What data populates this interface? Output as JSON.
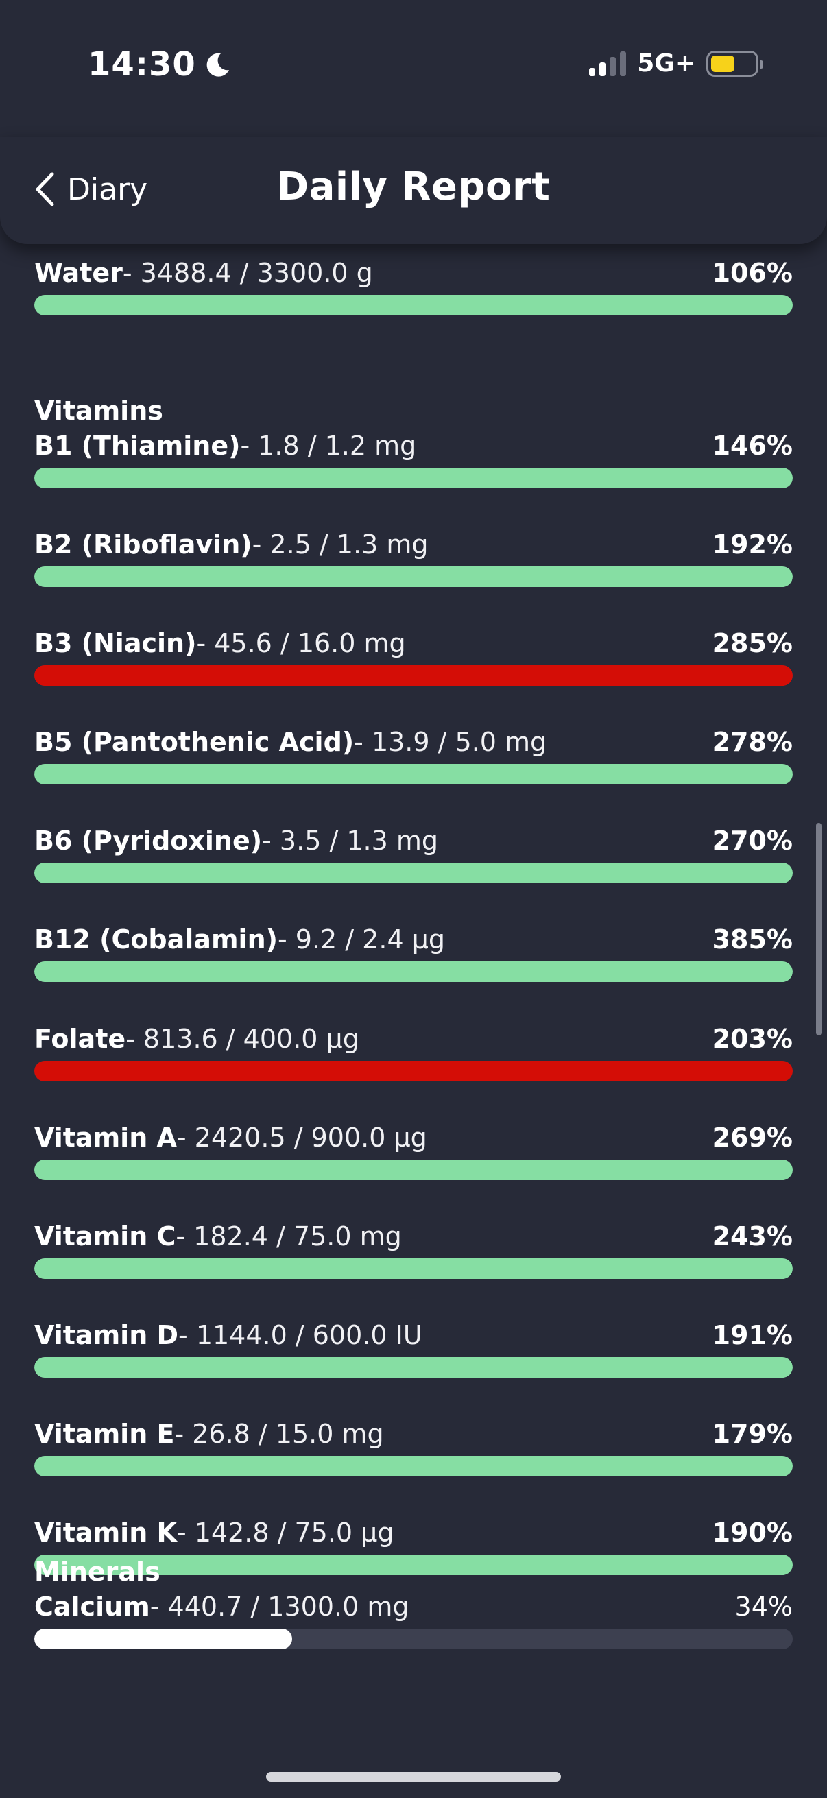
{
  "status_bar": {
    "time": "14:30",
    "network": "5G+",
    "battery_color": "#f7d21a",
    "icons": [
      "moon-icon",
      "signal-icon",
      "battery-icon"
    ]
  },
  "header": {
    "back_label": "Diary",
    "title": "Daily Report",
    "back_icon": "chevron-left-icon"
  },
  "colors": {
    "ok": "#86dea3",
    "over": "#d40d06",
    "under": "#ffffff",
    "track": "#3d4050"
  },
  "sections": [
    {
      "title": "",
      "items": [
        {
          "name": "Water",
          "amount": "- 3488.4 / 3300.0 g",
          "percent": "106%",
          "fill": 1.0,
          "status": "ok"
        }
      ]
    },
    {
      "title": "Vitamins",
      "items": [
        {
          "name": "B1 (Thiamine)",
          "amount": "- 1.8 / 1.2 mg",
          "percent": "146%",
          "fill": 1.0,
          "status": "ok"
        },
        {
          "name": "B2 (Riboflavin)",
          "amount": "- 2.5 / 1.3 mg",
          "percent": "192%",
          "fill": 1.0,
          "status": "ok"
        },
        {
          "name": "B3 (Niacin)",
          "amount": "- 45.6 / 16.0 mg",
          "percent": "285%",
          "fill": 1.0,
          "status": "over"
        },
        {
          "name": "B5 (Pantothenic Acid)",
          "amount": "- 13.9 / 5.0 mg",
          "percent": "278%",
          "fill": 1.0,
          "status": "ok"
        },
        {
          "name": "B6 (Pyridoxine)",
          "amount": "- 3.5 / 1.3 mg",
          "percent": "270%",
          "fill": 1.0,
          "status": "ok"
        },
        {
          "name": "B12 (Cobalamin)",
          "amount": "- 9.2 / 2.4 µg",
          "percent": "385%",
          "fill": 1.0,
          "status": "ok"
        },
        {
          "name": "Folate",
          "amount": "- 813.6 / 400.0 µg",
          "percent": "203%",
          "fill": 1.0,
          "status": "over"
        },
        {
          "name": "Vitamin A",
          "amount": "- 2420.5 / 900.0 µg",
          "percent": "269%",
          "fill": 1.0,
          "status": "ok"
        },
        {
          "name": "Vitamin C",
          "amount": "- 182.4 / 75.0 mg",
          "percent": "243%",
          "fill": 1.0,
          "status": "ok"
        },
        {
          "name": "Vitamin D",
          "amount": "- 1144.0 / 600.0 IU",
          "percent": "191%",
          "fill": 1.0,
          "status": "ok"
        },
        {
          "name": "Vitamin E",
          "amount": "- 26.8 / 15.0 mg",
          "percent": "179%",
          "fill": 1.0,
          "status": "ok"
        },
        {
          "name": "Vitamin K",
          "amount": "- 142.8 / 75.0 µg",
          "percent": "190%",
          "fill": 1.0,
          "status": "ok"
        }
      ]
    },
    {
      "title": "Minerals",
      "items": [
        {
          "name": "Calcium",
          "amount": "- 440.7 / 1300.0 mg",
          "percent": "34%",
          "fill": 0.34,
          "status": "under"
        }
      ]
    }
  ]
}
